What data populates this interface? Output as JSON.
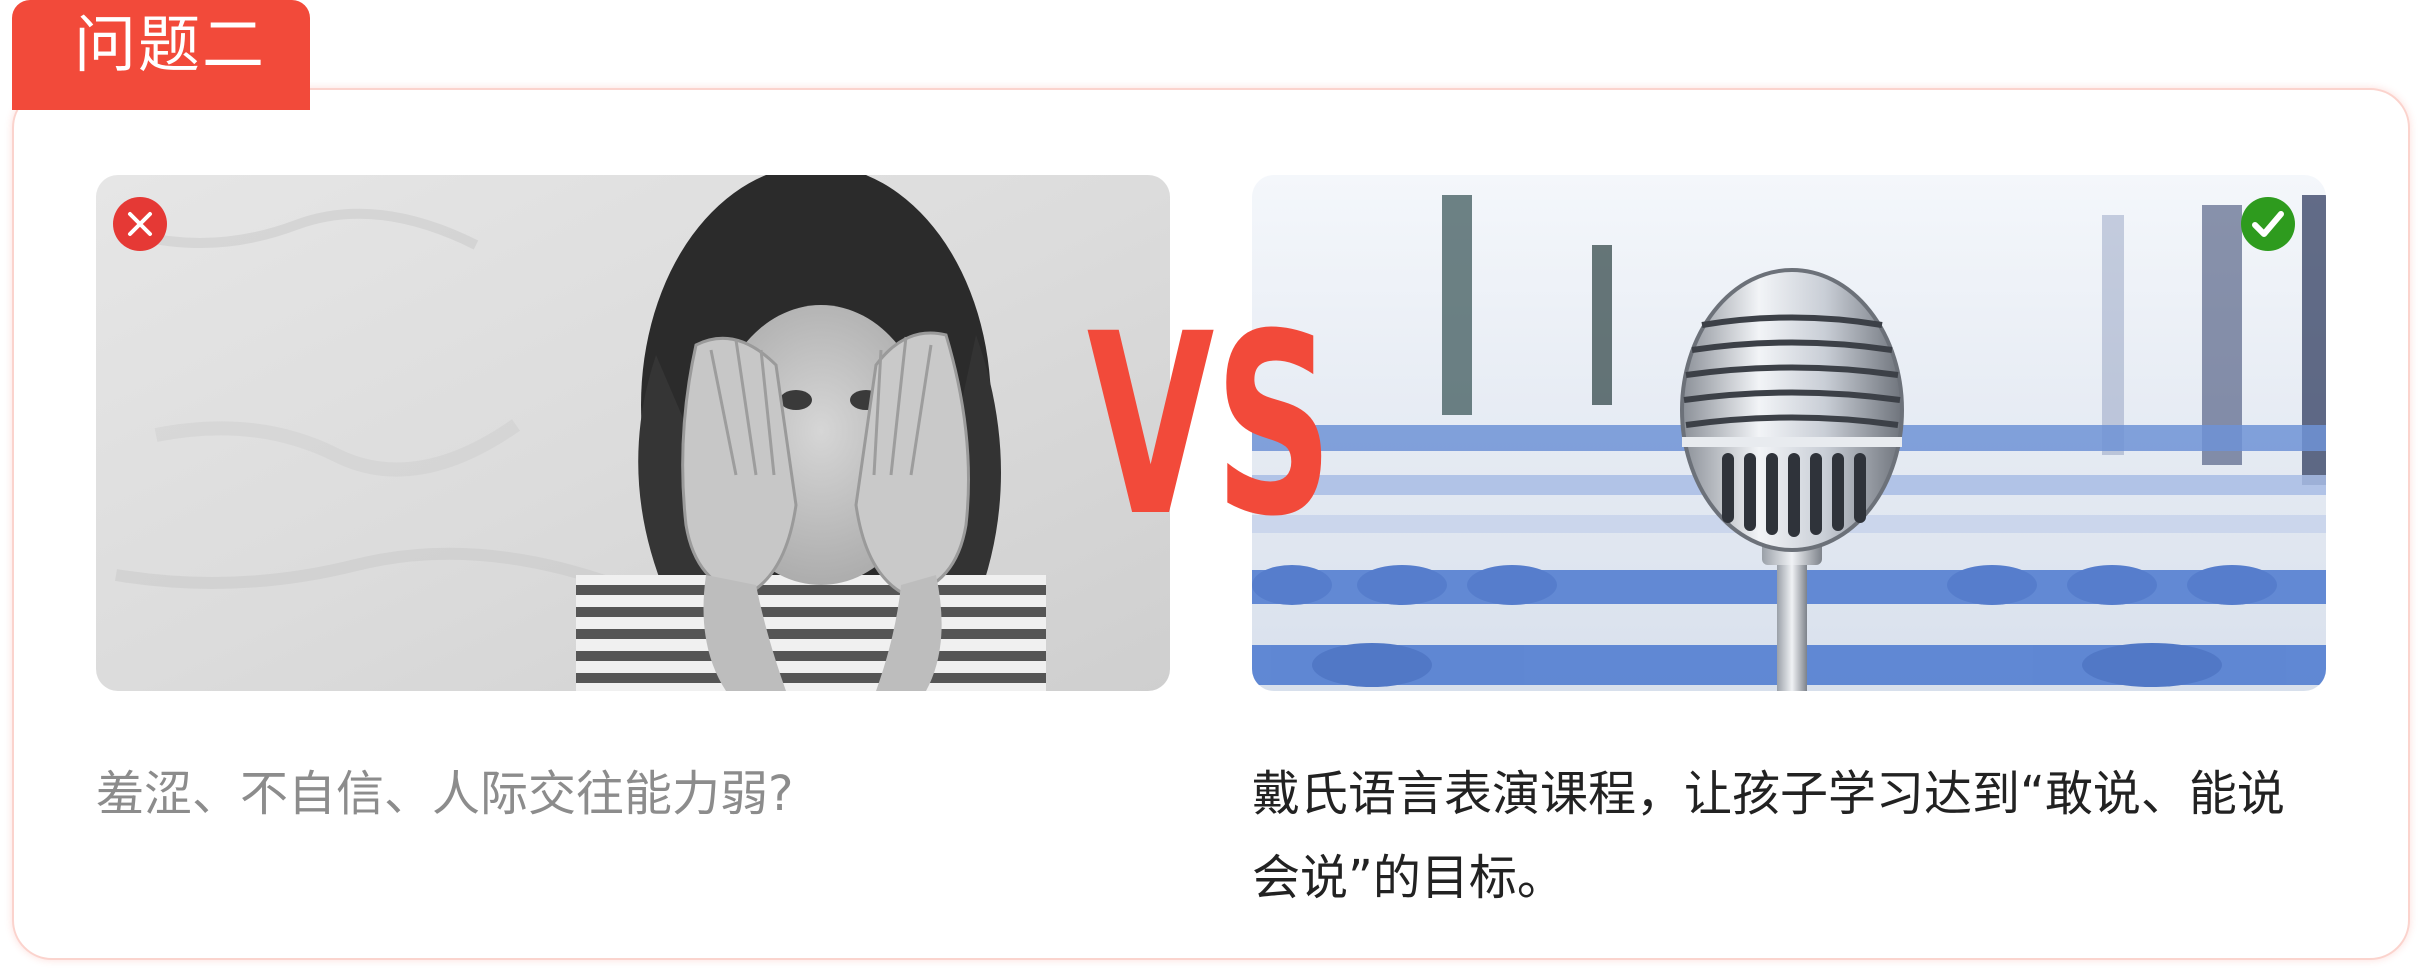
{
  "header": {
    "tab_label": "问题二"
  },
  "comparison": {
    "vs_label": "VS",
    "left": {
      "status_icon": "cross-circle-icon",
      "image_subject": "girl-covering-face-photo",
      "caption": "羞涩、不自信、人际交往能力弱?"
    },
    "right": {
      "status_icon": "check-circle-icon",
      "image_subject": "microphone-in-classroom-photo",
      "caption": "戴氏语言表演课程，让孩子学习达到“敢说、能说会说”的目标。"
    }
  },
  "colors": {
    "accent": "#f24a3a",
    "cross_badge": "#e53935",
    "check_badge": "#2e9b1e",
    "muted_text": "#8c8c8c",
    "body_text": "#222222",
    "card_border": "#fbd3cd"
  }
}
